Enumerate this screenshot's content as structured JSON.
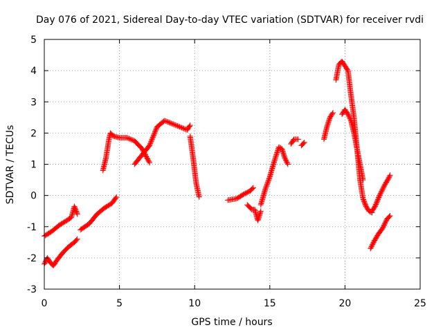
{
  "chart_data": {
    "type": "scatter",
    "title": "Day 076 of 2021, Sidereal Day-to-day VTEC variation (SDTVAR) for receiver rvdi",
    "xlabel": "GPS time / hours",
    "ylabel": "SDTVAR / TECUs",
    "xlim": [
      0,
      25
    ],
    "ylim": [
      -3,
      5
    ],
    "x_ticks": [
      "0",
      "5",
      "10",
      "15",
      "20",
      "25"
    ],
    "y_ticks": [
      "-3",
      "-2",
      "-1",
      "0",
      "1",
      "2",
      "3",
      "4",
      "5"
    ],
    "grid": true,
    "legend": "none",
    "marker": "plus",
    "series_color": "#ff0000",
    "segments": [
      {
        "x": [
          0.0,
          0.5,
          1.0,
          1.5,
          1.8,
          2.0,
          2.2
        ],
        "y": [
          -1.3,
          -1.15,
          -0.95,
          -0.8,
          -0.7,
          -0.35,
          -0.6
        ]
      },
      {
        "x": [
          0.0,
          0.2,
          0.4,
          0.6,
          0.8,
          1.2,
          1.6,
          2.0,
          2.2
        ],
        "y": [
          -2.2,
          -2.0,
          -2.15,
          -2.25,
          -2.1,
          -1.85,
          -1.65,
          -1.5,
          -1.4
        ]
      },
      {
        "x": [
          2.4,
          3.0,
          3.5,
          4.0,
          4.5,
          4.8
        ],
        "y": [
          -1.1,
          -0.9,
          -0.6,
          -0.4,
          -0.25,
          -0.05
        ]
      },
      {
        "x": [
          3.9,
          4.1,
          4.3,
          4.4,
          4.6,
          5.0,
          5.5,
          6.0,
          6.5,
          7.0
        ],
        "y": [
          0.8,
          1.2,
          1.8,
          2.0,
          1.9,
          1.85,
          1.85,
          1.75,
          1.5,
          1.05
        ]
      },
      {
        "x": [
          6.0,
          6.5,
          7.0,
          7.5,
          8.0,
          8.5,
          9.0,
          9.5,
          9.7
        ],
        "y": [
          1.0,
          1.3,
          1.6,
          2.2,
          2.4,
          2.3,
          2.2,
          2.1,
          2.25
        ]
      },
      {
        "x": [
          9.7,
          9.9,
          10.1,
          10.3
        ],
        "y": [
          1.9,
          1.2,
          0.4,
          -0.05
        ]
      },
      {
        "x": [
          12.2,
          12.8,
          13.3,
          13.7,
          13.9
        ],
        "y": [
          -0.15,
          -0.1,
          0.05,
          0.15,
          0.25
        ]
      },
      {
        "x": [
          13.5,
          13.8,
          14.0,
          14.2,
          14.4
        ],
        "y": [
          -0.3,
          -0.45,
          -0.45,
          -0.8,
          -0.5
        ]
      },
      {
        "x": [
          14.4,
          14.7,
          15.0,
          15.3,
          15.6,
          15.8,
          16.0,
          16.2
        ],
        "y": [
          -0.3,
          0.2,
          0.6,
          1.1,
          1.55,
          1.5,
          1.2,
          1.0
        ]
      },
      {
        "x": [
          16.4,
          16.6,
          16.9
        ],
        "y": [
          1.65,
          1.8,
          1.8
        ]
      },
      {
        "x": [
          17.1,
          17.3
        ],
        "y": [
          1.6,
          1.7
        ]
      },
      {
        "x": [
          18.6,
          18.8,
          19.0,
          19.2
        ],
        "y": [
          1.8,
          2.2,
          2.5,
          2.65
        ]
      },
      {
        "x": [
          19.4,
          19.6,
          19.8,
          20.0,
          20.2,
          20.4,
          20.6,
          20.8,
          21.0,
          21.2,
          21.4,
          21.6,
          21.8
        ],
        "y": [
          3.7,
          4.2,
          4.3,
          4.15,
          4.0,
          3.2,
          2.5,
          1.5,
          0.5,
          -0.1,
          -0.35,
          -0.5,
          -0.55
        ]
      },
      {
        "x": [
          19.8,
          20.0,
          20.2,
          20.4,
          20.6,
          20.8,
          21.0,
          21.2
        ],
        "y": [
          2.6,
          2.75,
          2.6,
          2.4,
          2.0,
          1.5,
          1.0,
          0.5
        ]
      },
      {
        "x": [
          21.8,
          22.0,
          22.3,
          22.6,
          22.9,
          23.0
        ],
        "y": [
          -0.5,
          -0.35,
          0.0,
          0.3,
          0.55,
          0.65
        ]
      },
      {
        "x": [
          21.7,
          21.9,
          22.2,
          22.5,
          22.8,
          23.0
        ],
        "y": [
          -1.7,
          -1.5,
          -1.25,
          -1.05,
          -0.75,
          -0.65
        ]
      }
    ]
  }
}
